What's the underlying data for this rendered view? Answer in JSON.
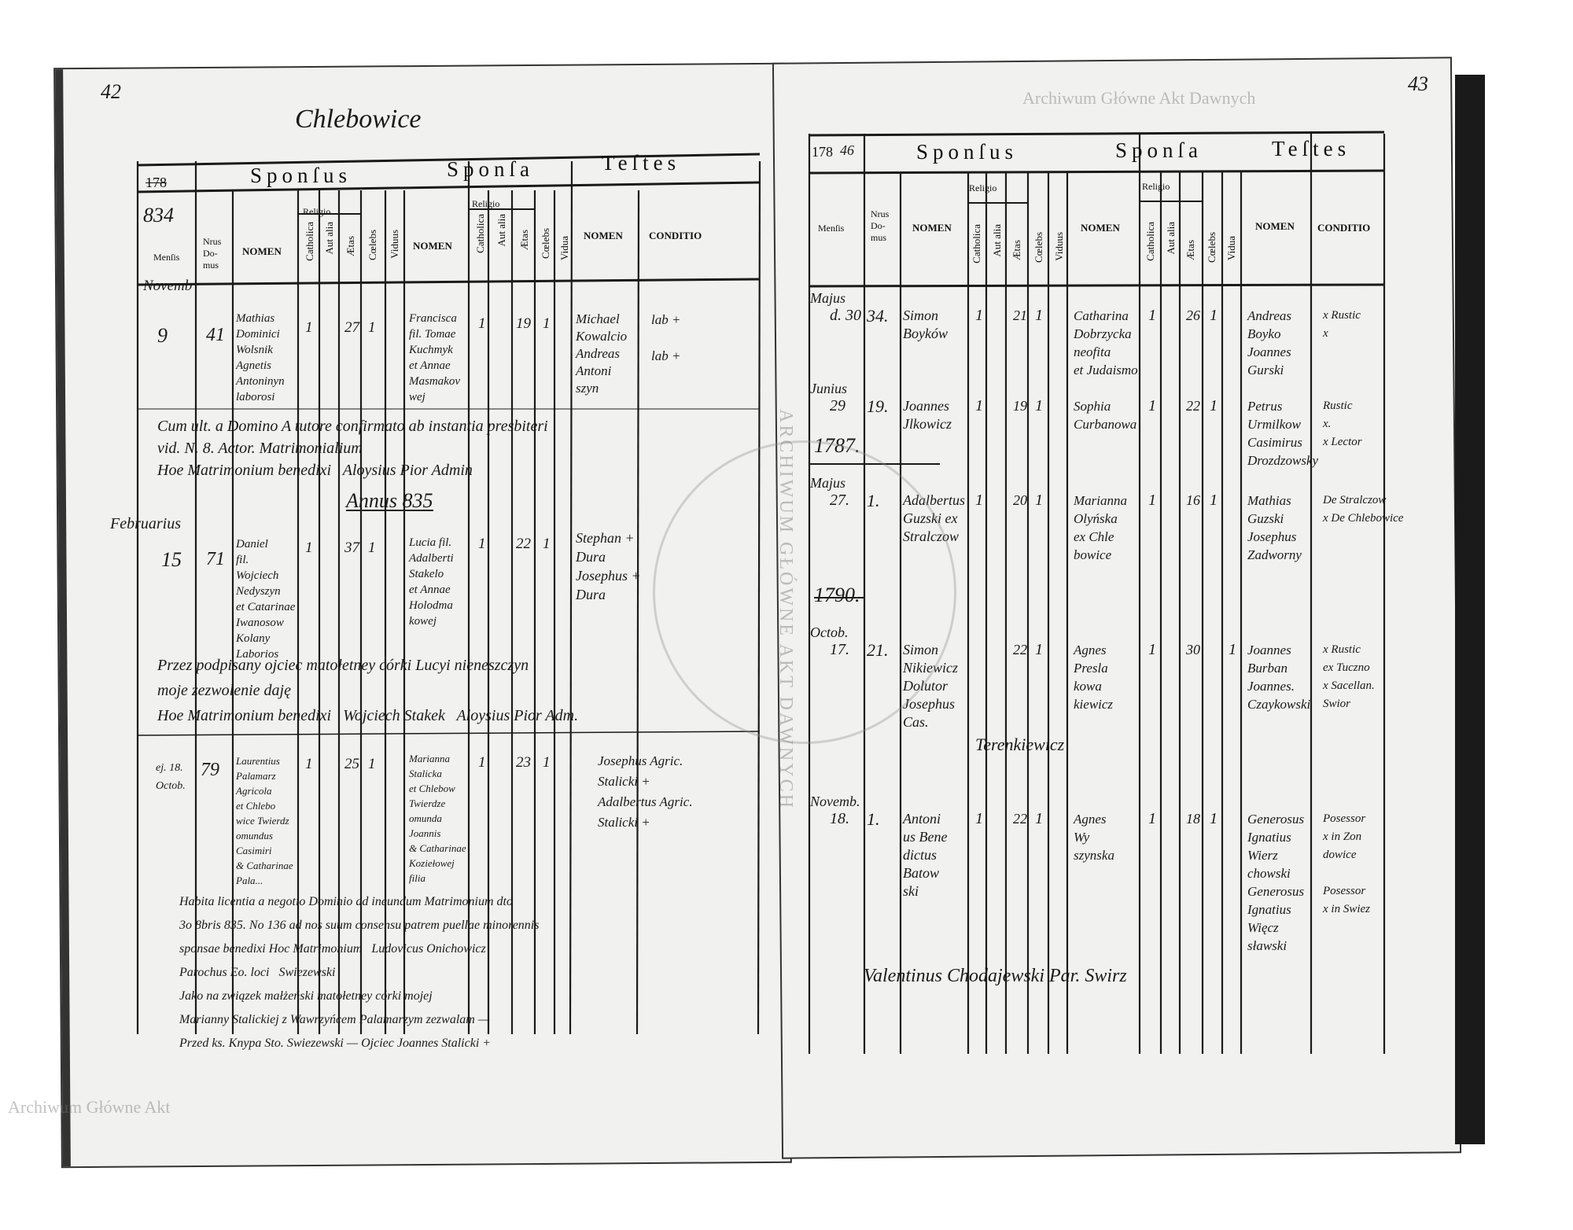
{
  "left_page": {
    "page_number": "42",
    "parish": "Chlebowice",
    "year_printed": "178",
    "year_written": "834",
    "headers": {
      "sponsus": "Sponſus",
      "sponsa": "Sponſa",
      "testes": "Teſtes",
      "mensis": "Menſis",
      "nrus_domus": "Nrus Do-mus",
      "nomen": "NOMEN",
      "religio": "Religio",
      "catholica": "Catholica",
      "aut_alia": "Aut alia",
      "aetas": "Ætas",
      "caelebs": "Cœlebs",
      "viduus": "Viduus",
      "vidua": "Vidua",
      "conditio": "CONDITIO"
    },
    "month_header": "Novemb",
    "entries": [
      {
        "day": "9",
        "house": "41",
        "sponsus": "Mathias\nDominici\nWolsnik\nAgnetis\nAntoninyn\nlaborosi",
        "sponsus_cat": "1",
        "sponsus_age": "27",
        "sponsus_cael": "1",
        "sponsa": "Francisca\nfil. Tomae\nKuchmyk\net Annae\nMasmakov\nwej",
        "sponsa_cat": "1",
        "sponsa_age": "19",
        "sponsa_cael": "1",
        "testes": "Michael\nKowalcio\nAndreas\nAntoni\nszyn",
        "conditio": "lab +\n\nlab +",
        "note": "Cum ult. a Domino A tutore confirmato ab instantia presbiteri\nvid. N. 8. Actor. Matrimonialium\nHoe Matrimonium benedixi   Aloysius Pior Admin"
      },
      {
        "month": "Februarius",
        "day": "15",
        "house": "71",
        "sponsus": "Daniel\nfil.\nWojciech\nNedyszyn\net Catarinae\nIwanosow\nKolany\nLaborios",
        "sponsus_cat": "1",
        "sponsus_age": "37",
        "sponsus_cael": "1",
        "sponsa": "Lucia fil.\nAdalberti\nStakelo\net Annae\nHolodma\nkowej",
        "sponsa_cat": "1",
        "sponsa_age": "22",
        "sponsa_cael": "1",
        "testes": "Stephan +\nDura\nJosephus +\nDura",
        "conditio": "",
        "year_mark": "Annus 835",
        "note": "Przez podpisany ojciec matołetney córki Lucyi nieneszczyn\nmoje zezwolenie daję\nHoe Matrimonium benedixi   Wojciech Stakek   Aloysius Pior Adm."
      },
      {
        "day": "ej. 18.\nOctob.",
        "house": "79",
        "sponsus": "Laurentius\nPalamarz\nAgricola\net Chlebo\nwice Twierdz\nomundus\nCasimiri\n& Catharinae\nPala...",
        "sponsus_cat": "1",
        "sponsus_age": "25",
        "sponsus_cael": "1",
        "sponsa": "Marianna\nStalicka\net Chlebow\nTwierdze\nomunda\nJoannis\n& Catharinae\nKoziełowej\nfilia",
        "sponsa_cat": "1",
        "sponsa_age": "23",
        "sponsa_cael": "1",
        "testes": "Josephus Agric.\nStalicki +\nAdalbertus Agric.\nStalicki +",
        "conditio": "",
        "note": "Habita licentia a negotio Dominio ad ineundum Matrimonium dto\n3o 8bris 835. No 136 ad nos suum consensu patrem puellae minorennis\nsponsae benedixi Hoc Matrimonium   Ludovicus Onichowicz\nParochus Eo. loci   Swiezewski\nJako na związek małżeński matołetney córki mojej\nMarianny Stalickiej z Wawrzyńcem Palamarzym zezwalam —\nPrzed ks. Knypa Sto. Swiezewski — Ojciec Joannes Stalicki +"
      }
    ]
  },
  "right_page": {
    "page_number": "43",
    "year_printed": "178",
    "year_written": "46",
    "headers": {
      "sponsus": "Sponſus",
      "sponsa": "Sponſa",
      "testes": "Teſtes",
      "mensis": "Menſis",
      "nrus_domus": "Nrus Do-mus",
      "nomen": "NOMEN",
      "religio": "Religio",
      "catholica": "Catholica",
      "aut_alia": "Aut alia",
      "aetas": "Ætas",
      "caelebs": "Cœlebs",
      "viduus": "Viduus",
      "vidua": "Vidua",
      "conditio": "CONDITIO"
    },
    "entries": [
      {
        "month": "Majus",
        "day": "d. 30",
        "house": "34.",
        "sponsus": "Simon\nBoyków",
        "s_cat": "1",
        "s_age": "21",
        "s_cael": "1",
        "sponsa": "Catharina\nDobrzycka\nneofita\net Judaismo",
        "a_cat": "1",
        "a_age": "26",
        "a_cael": "1",
        "testes": "Andreas\nBoyko\nJoannes\nGurski",
        "conditio": "x Rustic\nx"
      },
      {
        "month": "Junius",
        "day": "29",
        "house": "19.",
        "sponsus": "Joannes\nJlkowicz",
        "s_cat": "1",
        "s_age": "19",
        "s_cael": "1",
        "sponsa": "Sophia\nCurbanowa",
        "a_cat": "1",
        "a_age": "22",
        "a_cael": "1",
        "testes": "Petrus\nUrmilkow\nCasimirus\nDrozdzowsky",
        "conditio": "Rustic\nx.\nx Lector"
      },
      {
        "year_mark": "1787.",
        "month": "Majus",
        "day": "27.",
        "house": "1.",
        "sponsus": "Adalbertus\nGuzski ex\nStralczow",
        "s_cat": "1",
        "s_age": "20",
        "s_cael": "1",
        "sponsa": "Marianna\nOlyńska\nex Chle\nbowice",
        "a_cat": "1",
        "a_age": "16",
        "a_cael": "1",
        "testes": "Mathias\nGuzski\nJosephus\nZadworny",
        "conditio": "De Stralczow\nx De Chlebowice"
      },
      {
        "year_mark": "1790.",
        "month": "Octob.",
        "day": "17.",
        "house": "21.",
        "sponsus": "Simon\nNikiewicz\nDolutor\nJosephus\nCas.",
        "s_cat": "",
        "s_age": "22",
        "s_cael": "1",
        "sponsa": "Agnes\nPresla\nkowa\nkiewicz",
        "a_cat": "1",
        "a_age": "30",
        "a_cael": "",
        "a_vid": "1",
        "testes": "Joannes\nBurban\nJoannes.\nCzaykowski",
        "conditio": "x Rustic\nex Tuczno\nx Sacellan.\nSwior",
        "extra": "Terenkiewicz"
      },
      {
        "month": "Novemb.",
        "day": "18.",
        "house": "1.",
        "sponsus": "Antoni\nus Bene\ndictus\nBatow\nski",
        "s_cat": "1",
        "s_age": "22",
        "s_cael": "1",
        "sponsa": "Agnes\nWy\nszynska",
        "a_cat": "1",
        "a_age": "18",
        "a_cael": "1",
        "testes": "Generosus\nIgnatius\nWierz\nchowski\nGenerosus\nIgnatius\nWięcz\nsławski",
        "conditio": "Posessor\nx in Zon\ndowice\n\nPosessor\nx in Swiez",
        "note": "Valentinus Chodajewski Par. Swirz"
      }
    ]
  },
  "watermarks": [
    "Archiwum Główne Akt Dawnych",
    "Archiwum Główne Akt"
  ],
  "seal_text": "ARCHIWUM GŁÓWNE AKT DAWNYCH"
}
